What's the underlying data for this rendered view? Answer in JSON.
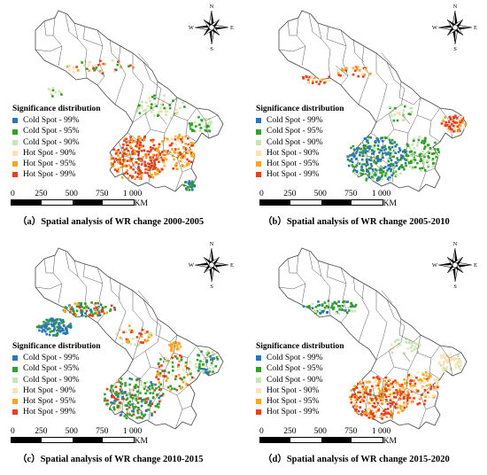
{
  "legend": {
    "title": "Significance distribution",
    "items": [
      {
        "label": "Cold Spot - 99%",
        "color": "#2a76b9"
      },
      {
        "label": "Cold Spot - 95%",
        "color": "#33a02c"
      },
      {
        "label": "Cold Spot - 90%",
        "color": "#c8e6b0"
      },
      {
        "label": "Hot Spot - 90%",
        "color": "#fde0b4"
      },
      {
        "label": "Hot Spot - 95%",
        "color": "#f5a623"
      },
      {
        "label": "Hot Spot - 99%",
        "color": "#e8401c"
      }
    ]
  },
  "compass": {
    "n": "N",
    "s": "S",
    "e": "E",
    "w": "W"
  },
  "scale": {
    "ticks": [
      "0",
      "250",
      "500",
      "750",
      "1 000"
    ],
    "unit": "KM"
  },
  "panels": [
    {
      "id": "a",
      "caption": "（a）Spatial analysis of WR change 2000-2005",
      "dominant": "hot-south"
    },
    {
      "id": "b",
      "caption": "（b）Spatial analysis of WR change 2005-2010",
      "dominant": "cold-south"
    },
    {
      "id": "c",
      "caption": "（c）Spatial analysis of WR change 2010-2015",
      "dominant": "mixed"
    },
    {
      "id": "d",
      "caption": "（d）Spatial analysis of WR change 2015-2020",
      "dominant": "hot-south-strong"
    }
  ]
}
